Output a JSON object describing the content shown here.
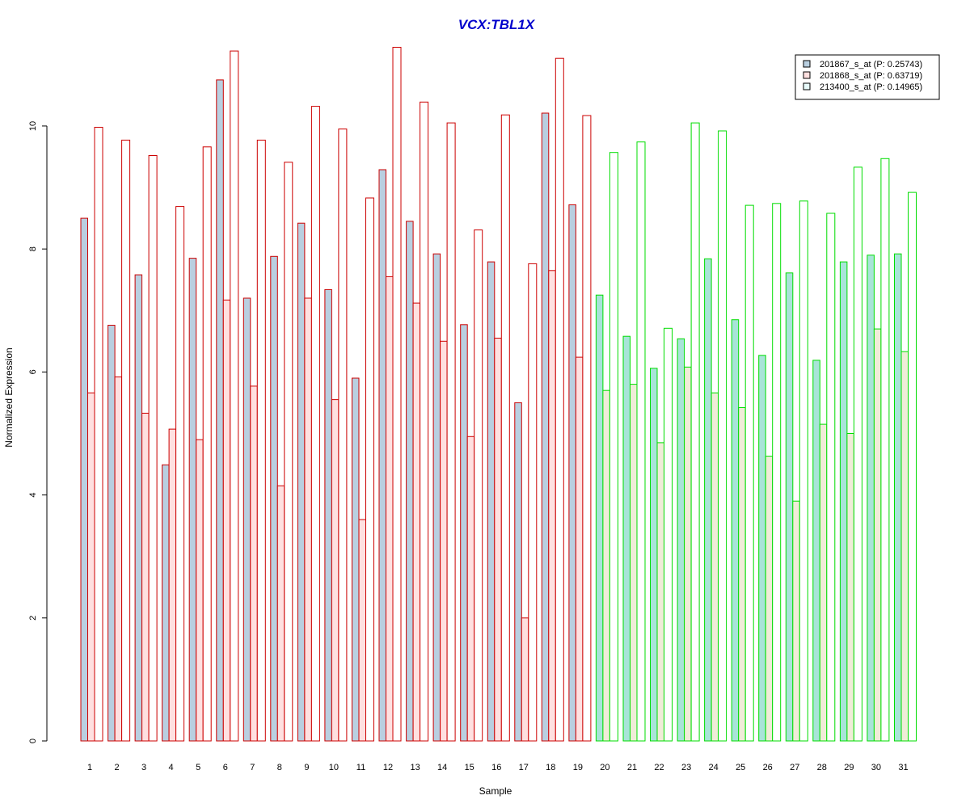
{
  "chart_data": {
    "type": "bar",
    "title": "VCX:TBL1X",
    "xlabel": "Sample",
    "ylabel": "Normalized Expression",
    "ylim": [
      0,
      11.3
    ],
    "yticks": [
      0,
      2,
      4,
      6,
      8,
      10
    ],
    "grid": false,
    "legend_position": "top-right",
    "categories": [
      "1",
      "2",
      "3",
      "4",
      "5",
      "6",
      "7",
      "8",
      "9",
      "10",
      "11",
      "12",
      "13",
      "14",
      "15",
      "16",
      "17",
      "18",
      "19",
      "20",
      "21",
      "22",
      "23",
      "24",
      "25",
      "26",
      "27",
      "28",
      "29",
      "30",
      "31"
    ],
    "group_colors": {
      "group1": {
        "samples": "1-19",
        "border": "#cc0000"
      },
      "group2": {
        "samples": "20-31",
        "border": "#00dd00"
      }
    },
    "series": [
      {
        "name": "201867_s_at (P: 0.25743)",
        "fill_group1": "#b9cfe0",
        "fill_group2": "#a8e4d8",
        "values": [
          8.5,
          6.76,
          7.58,
          4.49,
          7.85,
          10.75,
          7.2,
          7.88,
          8.42,
          7.34,
          5.9,
          9.29,
          8.45,
          7.92,
          6.77,
          7.79,
          5.5,
          10.21,
          8.72,
          7.25,
          6.58,
          6.06,
          6.54,
          7.84,
          6.85,
          6.27,
          7.61,
          6.19,
          7.79,
          7.9,
          7.92
        ]
      },
      {
        "name": "201868_s_at (P: 0.63719)",
        "fill_group1": "#ffe0e0",
        "fill_group2": "#f0ecd8",
        "values": [
          5.66,
          5.92,
          5.33,
          5.07,
          4.9,
          7.17,
          5.77,
          4.15,
          7.2,
          5.55,
          3.6,
          7.55,
          7.12,
          6.5,
          4.95,
          6.55,
          2.0,
          7.65,
          6.24,
          5.7,
          5.8,
          4.85,
          6.08,
          5.66,
          5.42,
          4.63,
          3.9,
          5.15,
          5.0,
          6.7,
          6.33
        ]
      },
      {
        "name": "213400_s_at (P: 0.14965)",
        "fill_group1": "#ffffff",
        "fill_group2": "#ffffff",
        "values": [
          9.98,
          9.77,
          9.52,
          8.69,
          9.66,
          11.22,
          9.77,
          9.41,
          10.32,
          9.95,
          8.83,
          11.28,
          10.39,
          10.05,
          8.31,
          10.18,
          7.76,
          11.1,
          10.17,
          9.57,
          9.74,
          6.71,
          10.05,
          9.92,
          8.71,
          8.74,
          8.78,
          8.58,
          9.33,
          9.47,
          8.92
        ]
      }
    ],
    "legend_swatches": [
      "#b9cfe0",
      "#ffe0e0",
      "#e8fbfb"
    ]
  }
}
